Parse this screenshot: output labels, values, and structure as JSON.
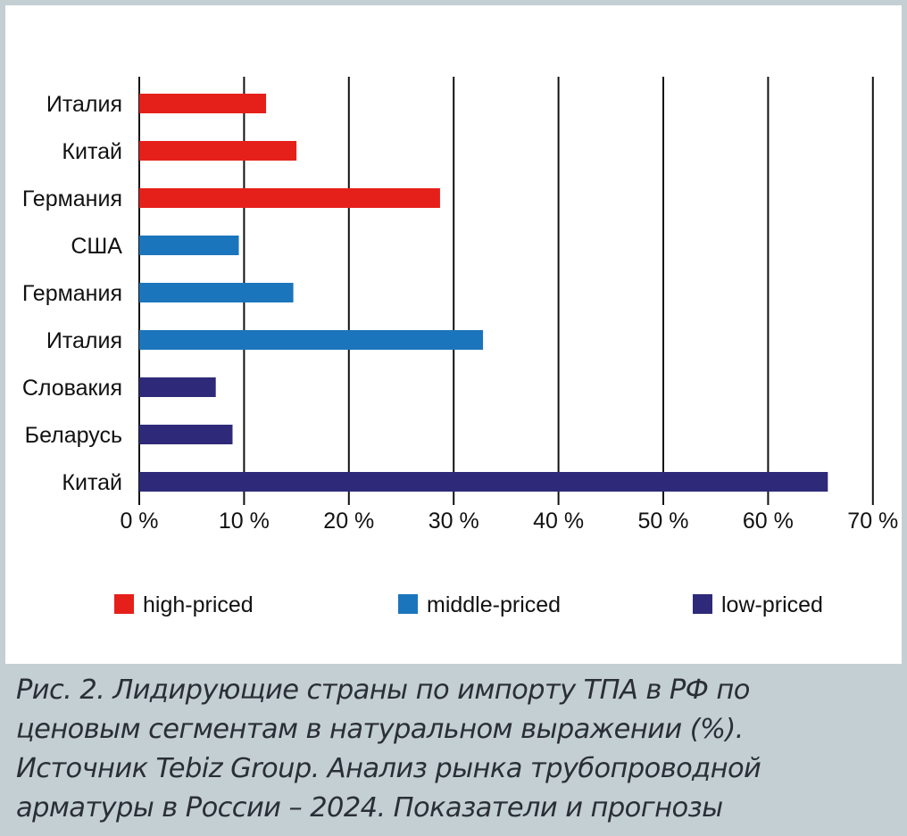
{
  "chart_data": {
    "type": "bar",
    "orientation": "horizontal",
    "categories": [
      "Италия",
      "Китай",
      "Германия",
      "США",
      "Германия",
      "Италия",
      "Словакия",
      "Беларусь",
      "Китай"
    ],
    "values": [
      12.1,
      15.0,
      28.7,
      9.5,
      14.7,
      32.8,
      7.3,
      8.9,
      65.7
    ],
    "segments": [
      "high-priced",
      "high-priced",
      "high-priced",
      "middle-priced",
      "middle-priced",
      "middle-priced",
      "low-priced",
      "low-priced",
      "low-priced"
    ],
    "series": [
      {
        "name": "high-priced",
        "color": "#e5201b"
      },
      {
        "name": "middle-priced",
        "color": "#1b75bc"
      },
      {
        "name": "low-priced",
        "color": "#2e2a79"
      }
    ],
    "xlim": [
      0,
      70
    ],
    "x_ticks": [
      0,
      10,
      20,
      30,
      40,
      50,
      60,
      70
    ],
    "x_tick_labels": [
      "0 %",
      "10 %",
      "20 %",
      "30 %",
      "40 %",
      "50 %",
      "60 %",
      "70 %"
    ],
    "grid": "vertical",
    "legend_placement": "bottom"
  },
  "caption": {
    "lines": [
      "Рис. 2. Лидирующие страны по импорту ТПА в РФ по",
      "ценовым сегментам в натуральном выражении (%).",
      "Источник Tebiz Group. Анализ рынка трубопроводной",
      "арматуры в России – 2024. Показатели и прогнозы"
    ]
  }
}
